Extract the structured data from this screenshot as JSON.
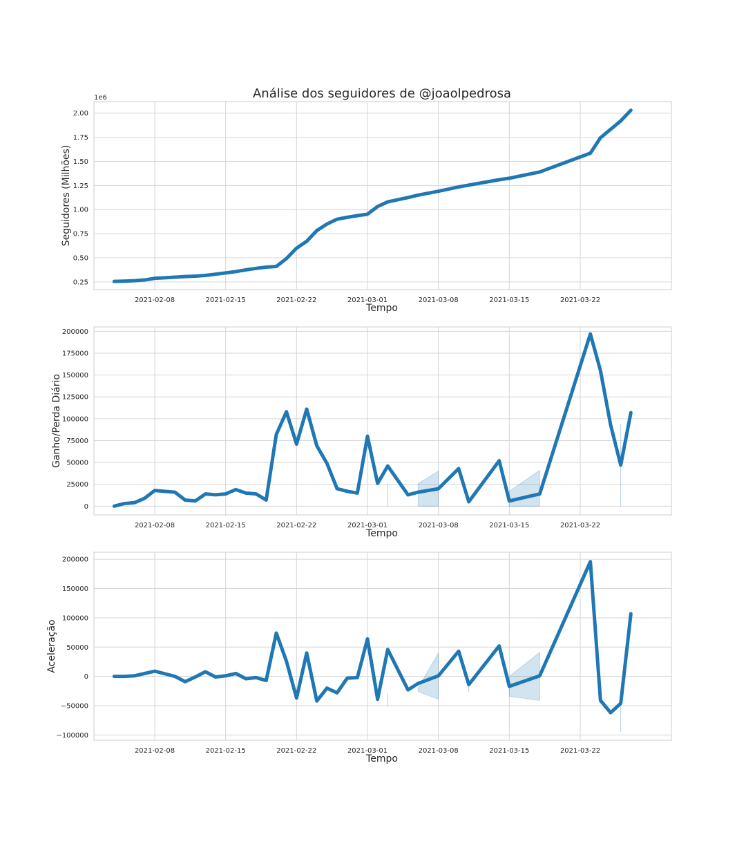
{
  "colors": {
    "series": "#1f77b4",
    "grid": "#d6d6d6",
    "frame": "#cccccc",
    "background": "#ffffff"
  },
  "chart_data": [
    {
      "type": "line",
      "title": "Análise dos seguidores de @joaolpedrosa",
      "xlabel": "Tempo",
      "ylabel": "Seguidores (Milhões)",
      "y_offset_label": "1e6",
      "xlim": [
        "2021-02-02",
        "2021-03-31"
      ],
      "ylim": [
        170000,
        2120000
      ],
      "xticks": [
        "2021-02-08",
        "2021-02-15",
        "2021-02-22",
        "2021-03-01",
        "2021-03-08",
        "2021-03-15",
        "2021-03-22"
      ],
      "yticks": [
        250000,
        500000,
        750000,
        1000000,
        1250000,
        1500000,
        1750000,
        2000000
      ],
      "ytick_labels": [
        "0.25",
        "0.50",
        "0.75",
        "1.00",
        "1.25",
        "1.50",
        "1.75",
        "2.00"
      ],
      "grid": true,
      "series": [
        {
          "x": [
            "2021-02-04",
            "2021-02-05",
            "2021-02-06",
            "2021-02-07",
            "2021-02-08",
            "2021-02-09",
            "2021-02-11",
            "2021-02-12",
            "2021-02-13",
            "2021-02-14",
            "2021-02-15",
            "2021-02-16",
            "2021-02-17",
            "2021-02-18",
            "2021-02-19",
            "2021-02-20",
            "2021-02-21",
            "2021-02-22",
            "2021-02-23",
            "2021-02-24",
            "2021-02-25",
            "2021-02-26",
            "2021-02-27",
            "2021-02-28",
            "2021-03-01",
            "2021-03-02",
            "2021-03-03",
            "2021-03-05",
            "2021-03-06",
            "2021-03-08",
            "2021-03-10",
            "2021-03-14",
            "2021-03-15",
            "2021-03-18",
            "2021-03-23",
            "2021-03-24",
            "2021-03-26",
            "2021-03-27"
          ],
          "values": [
            255000,
            258000,
            262000,
            270000,
            287000,
            293000,
            305000,
            310000,
            317000,
            330000,
            343000,
            357000,
            375000,
            390000,
            403000,
            410000,
            492000,
            600000,
            671000,
            782000,
            850000,
            900000,
            920000,
            937000,
            952000,
            1032000,
            1080000,
            1125000,
            1150000,
            1190000,
            1235000,
            1310000,
            1325000,
            1390000,
            1585000,
            1745000,
            1920000,
            2030000
          ]
        }
      ]
    },
    {
      "type": "line",
      "xlabel": "Tempo",
      "ylabel": "Ganho/Perda Diário",
      "xlim": [
        "2021-02-02",
        "2021-03-31"
      ],
      "ylim": [
        -10000,
        205000
      ],
      "xticks": [
        "2021-02-08",
        "2021-02-15",
        "2021-02-22",
        "2021-03-01",
        "2021-03-08",
        "2021-03-15",
        "2021-03-22"
      ],
      "yticks": [
        0,
        25000,
        50000,
        75000,
        100000,
        125000,
        150000,
        175000,
        200000
      ],
      "ytick_labels": [
        "0",
        "25000",
        "50000",
        "75000",
        "100000",
        "125000",
        "150000",
        "175000",
        "200000"
      ],
      "grid": true,
      "series": [
        {
          "x": [
            "2021-02-04",
            "2021-02-05",
            "2021-02-06",
            "2021-02-07",
            "2021-02-08",
            "2021-02-10",
            "2021-02-11",
            "2021-02-12",
            "2021-02-13",
            "2021-02-14",
            "2021-02-15",
            "2021-02-16",
            "2021-02-17",
            "2021-02-18",
            "2021-02-19",
            "2021-02-20",
            "2021-02-21",
            "2021-02-22",
            "2021-02-23",
            "2021-02-24",
            "2021-02-25",
            "2021-02-26",
            "2021-02-27",
            "2021-02-28",
            "2021-03-01",
            "2021-03-02",
            "2021-03-03",
            "2021-03-05",
            "2021-03-06",
            "2021-03-08",
            "2021-03-10",
            "2021-03-11",
            "2021-03-14",
            "2021-03-15",
            "2021-03-18",
            "2021-03-23",
            "2021-03-24",
            "2021-03-25",
            "2021-03-26",
            "2021-03-27"
          ],
          "values": [
            0,
            3000,
            4000,
            9000,
            18000,
            16000,
            7000,
            6000,
            14000,
            13000,
            14000,
            19000,
            15000,
            14000,
            7000,
            82000,
            108000,
            71000,
            111000,
            69000,
            49000,
            20000,
            17000,
            15000,
            80000,
            26000,
            46000,
            13000,
            16000,
            20000,
            43000,
            5000,
            52000,
            6000,
            14000,
            197000,
            155000,
            93000,
            47000,
            107000
          ]
        }
      ],
      "bands": [
        {
          "x": [
            "2021-03-06",
            "2021-03-08"
          ],
          "lower": [
            0,
            0
          ],
          "upper": [
            26000,
            40000
          ]
        },
        {
          "x": [
            "2021-03-15",
            "2021-03-18"
          ],
          "lower": [
            0,
            0
          ],
          "upper": [
            17000,
            41000
          ]
        }
      ],
      "spikes": [
        {
          "x": "2021-03-03",
          "lower": 0,
          "upper": 26000
        },
        {
          "x": "2021-03-26",
          "lower": 0,
          "upper": 94000
        }
      ]
    },
    {
      "type": "line",
      "xlabel": "Tempo",
      "ylabel": "Aceleração",
      "xlim": [
        "2021-02-02",
        "2021-03-31"
      ],
      "ylim": [
        -109000,
        212000
      ],
      "xticks": [
        "2021-02-08",
        "2021-02-15",
        "2021-02-22",
        "2021-03-01",
        "2021-03-08",
        "2021-03-15",
        "2021-03-22"
      ],
      "yticks": [
        -100000,
        -50000,
        0,
        50000,
        100000,
        150000,
        200000
      ],
      "ytick_labels": [
        "−100000",
        "−50000",
        "0",
        "50000",
        "100000",
        "150000",
        "200000"
      ],
      "grid": true,
      "series": [
        {
          "x": [
            "2021-02-04",
            "2021-02-05",
            "2021-02-06",
            "2021-02-07",
            "2021-02-08",
            "2021-02-10",
            "2021-02-11",
            "2021-02-12",
            "2021-02-13",
            "2021-02-14",
            "2021-02-15",
            "2021-02-16",
            "2021-02-17",
            "2021-02-18",
            "2021-02-19",
            "2021-02-20",
            "2021-02-21",
            "2021-02-22",
            "2021-02-23",
            "2021-02-24",
            "2021-02-25",
            "2021-02-26",
            "2021-02-27",
            "2021-02-28",
            "2021-03-01",
            "2021-03-02",
            "2021-03-03",
            "2021-03-05",
            "2021-03-06",
            "2021-03-08",
            "2021-03-10",
            "2021-03-11",
            "2021-03-14",
            "2021-03-15",
            "2021-03-18",
            "2021-03-23",
            "2021-03-24",
            "2021-03-25",
            "2021-03-26",
            "2021-03-27"
          ],
          "values": [
            0,
            0,
            1000,
            5000,
            9000,
            0,
            -9000,
            -1000,
            8000,
            -1000,
            1000,
            5000,
            -4000,
            -2000,
            -7000,
            74000,
            26000,
            -37000,
            40000,
            -42000,
            -20000,
            -28000,
            -3000,
            -2000,
            64000,
            -39000,
            46000,
            -23000,
            -12000,
            1000,
            43000,
            -14000,
            52000,
            -17000,
            1000,
            196000,
            -41000,
            -62000,
            -46000,
            107000
          ]
        }
      ],
      "bands": [
        {
          "x": [
            "2021-03-06",
            "2021-03-08"
          ],
          "lower": [
            -26000,
            -39000
          ],
          "upper": [
            -20000,
            40000
          ]
        },
        {
          "x": [
            "2021-03-15",
            "2021-03-18"
          ],
          "lower": [
            -34000,
            -41000
          ],
          "upper": [
            0,
            41000
          ]
        }
      ],
      "spikes": [
        {
          "x": "2021-03-03",
          "lower": -50000,
          "upper": -28000
        },
        {
          "x": "2021-03-11",
          "lower": -27000,
          "upper": -10000
        },
        {
          "x": "2021-03-26",
          "lower": -95000,
          "upper": -40000
        }
      ]
    }
  ]
}
